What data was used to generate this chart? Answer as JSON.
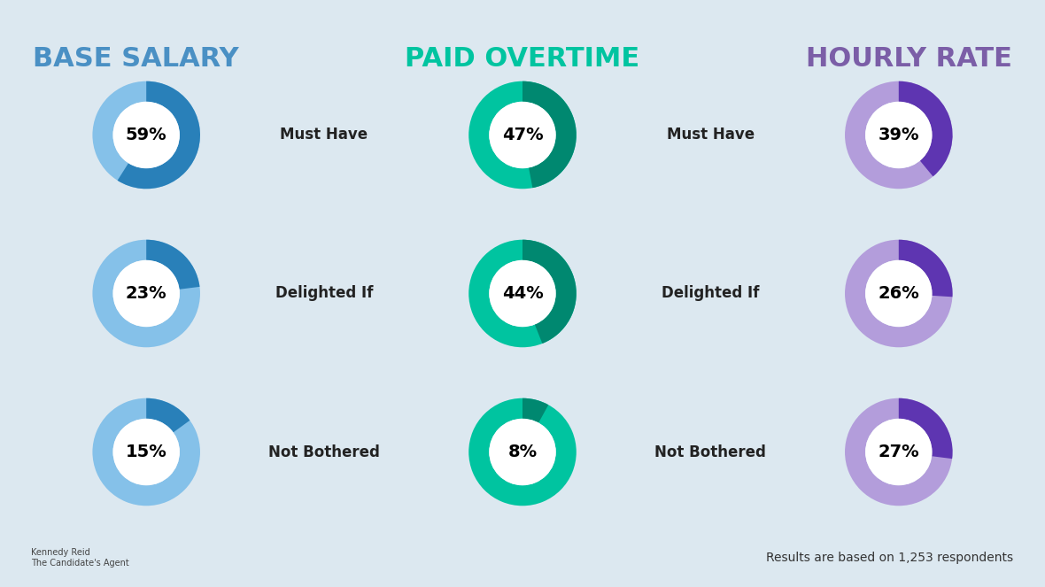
{
  "title_base_salary": "BASE SALARY",
  "title_paid_overtime": "PAID OVERTIME",
  "title_hourly_rate": "HOURLY RATE",
  "title_base_color": "#4a90c4",
  "title_overtime_color": "#00c4a0",
  "title_hourly_color": "#7b5ea7",
  "background_color": "#dce8f0",
  "base_salary": {
    "values": [
      59,
      23,
      15
    ],
    "ring_color": "#85c1e9",
    "accent_color": "#2980b9",
    "labels": [
      "Must Have",
      "Delighted If",
      "Not Bothered"
    ]
  },
  "paid_overtime": {
    "values": [
      47,
      44,
      8
    ],
    "ring_color": "#00c4a0",
    "accent_color": "#008870",
    "labels": [
      "Must Have",
      "Delighted If",
      "Not Bothered"
    ]
  },
  "hourly_rate": {
    "values": [
      39,
      26,
      27
    ],
    "ring_color": "#b39ddb",
    "accent_color": "#5e35b1",
    "labels": [
      "Must Have",
      "Delighted If",
      "Not Bothered"
    ]
  },
  "footnote": "Results are based on 1,253 respondents",
  "figsize": [
    11.8,
    6.63
  ],
  "dpi": 100
}
